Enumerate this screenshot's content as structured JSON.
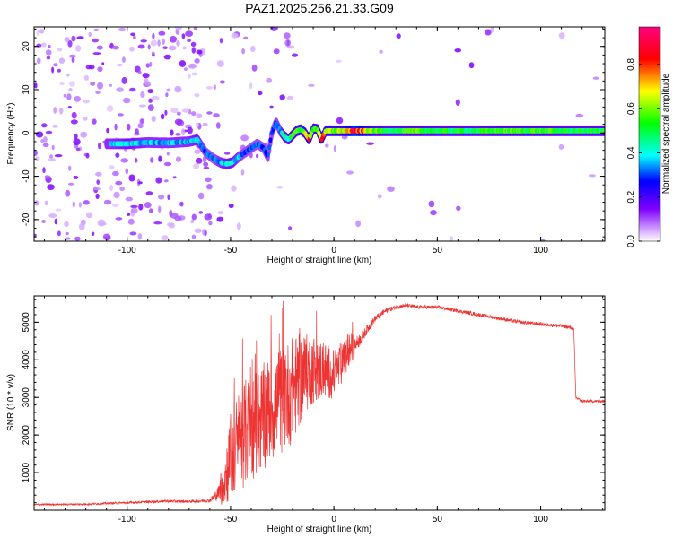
{
  "title": "PAZ1.2025.256.21.33.G09",
  "chart_data": [
    {
      "type": "heatmap",
      "xlabel": "Height of straight line (km)",
      "ylabel": "Frequency (Hz)",
      "xlim": [
        -145,
        131
      ],
      "ylim": [
        -25,
        24.5
      ],
      "xticks": [
        -100,
        -50,
        0,
        50,
        100
      ],
      "yticks": [
        -20,
        -10,
        0,
        10,
        20
      ],
      "colorbar": {
        "label": "Normalized spectral amplitude",
        "range": [
          0,
          0.97
        ],
        "ticks": [
          0.0,
          0.2,
          0.4,
          0.6,
          0.8
        ],
        "colormap": [
          "#ffffff",
          "#cc99ff",
          "#8000ff",
          "#0000ff",
          "#00ffff",
          "#00ff00",
          "#ffff00",
          "#ff0000",
          "#ff0080"
        ]
      },
      "ridge": {
        "x": [
          -107,
          -100,
          -90,
          -80,
          -70,
          -66,
          -62,
          -58,
          -55,
          -52,
          -49,
          -46,
          -43,
          -40,
          -37,
          -34,
          -32,
          -30,
          -28,
          -26,
          -24,
          -22,
          -20,
          -18,
          -16,
          -14,
          -12,
          -10,
          -8,
          -6,
          -4,
          -2,
          0,
          5,
          10,
          20,
          30,
          40,
          50,
          60,
          70,
          80,
          90,
          100,
          110,
          120,
          131
        ],
        "y": [
          -2.5,
          -2.5,
          -2.2,
          -2.3,
          -2.0,
          -1.5,
          -4.5,
          -6.0,
          -6.8,
          -7.2,
          -6.8,
          -5.5,
          -4.5,
          -3.5,
          -2.5,
          -3.5,
          -5.5,
          0.0,
          2.5,
          0.5,
          -0.8,
          -1.5,
          -0.5,
          0.5,
          0.8,
          0.0,
          -1.5,
          1.0,
          0.8,
          -1.5,
          0.5,
          0.5,
          0.5,
          0.5,
          0.5,
          0.5,
          0.5,
          0.5,
          0.5,
          0.5,
          0.5,
          0.5,
          0.5,
          0.5,
          0.5,
          0.5,
          0.5
        ],
        "amplitude": [
          0.35,
          0.4,
          0.35,
          0.35,
          0.35,
          0.4,
          0.3,
          0.3,
          0.35,
          0.4,
          0.4,
          0.35,
          0.3,
          0.3,
          0.3,
          0.3,
          0.3,
          0.3,
          0.3,
          0.35,
          0.45,
          0.45,
          0.5,
          0.55,
          0.55,
          0.6,
          0.75,
          0.55,
          0.6,
          0.8,
          0.6,
          0.6,
          0.6,
          0.65,
          0.85,
          0.55,
          0.5,
          0.55,
          0.5,
          0.5,
          0.5,
          0.55,
          0.55,
          0.55,
          0.5,
          0.5,
          0.5
        ]
      }
    },
    {
      "type": "line",
      "xlabel": "Height of straight line (km)",
      "ylabel": "SNR (10 * v/v)",
      "xlim": [
        -145,
        131
      ],
      "ylim": [
        0,
        5700
      ],
      "xticks": [
        -100,
        -50,
        0,
        50,
        100
      ],
      "yticks": [
        1000,
        2000,
        3000,
        4000,
        5000
      ],
      "color": "#ee3333",
      "series": [
        {
          "x": [
            -145,
            -120,
            -100,
            -80,
            -70,
            -60,
            -56,
            -53,
            -50,
            -47,
            -44,
            -40,
            -36,
            -32,
            -28,
            -24,
            -20,
            -16,
            -12,
            -8,
            -4,
            0,
            4,
            8,
            12,
            16,
            20,
            25,
            30,
            35,
            40,
            50,
            60,
            70,
            80,
            90,
            100,
            110,
            115,
            116,
            117,
            120,
            131
          ],
          "y": [
            150,
            160,
            200,
            240,
            230,
            260,
            450,
            800,
            1400,
            1700,
            2000,
            2200,
            2400,
            2600,
            2800,
            3000,
            3200,
            3500,
            3700,
            3800,
            3700,
            3600,
            3900,
            4300,
            4500,
            4800,
            5100,
            5300,
            5400,
            5450,
            5400,
            5400,
            5300,
            5200,
            5100,
            5000,
            4950,
            4900,
            4850,
            4800,
            3000,
            2900,
            2900
          ],
          "spread": [
            40,
            40,
            50,
            60,
            60,
            80,
            300,
            600,
            1100,
            1200,
            1300,
            1300,
            1300,
            1300,
            1300,
            1300,
            1300,
            1100,
            900,
            800,
            700,
            600,
            500,
            400,
            300,
            200,
            150,
            120,
            100,
            80,
            80,
            80,
            80,
            80,
            80,
            80,
            80,
            80,
            80,
            80,
            60,
            60,
            60
          ]
        }
      ]
    }
  ]
}
